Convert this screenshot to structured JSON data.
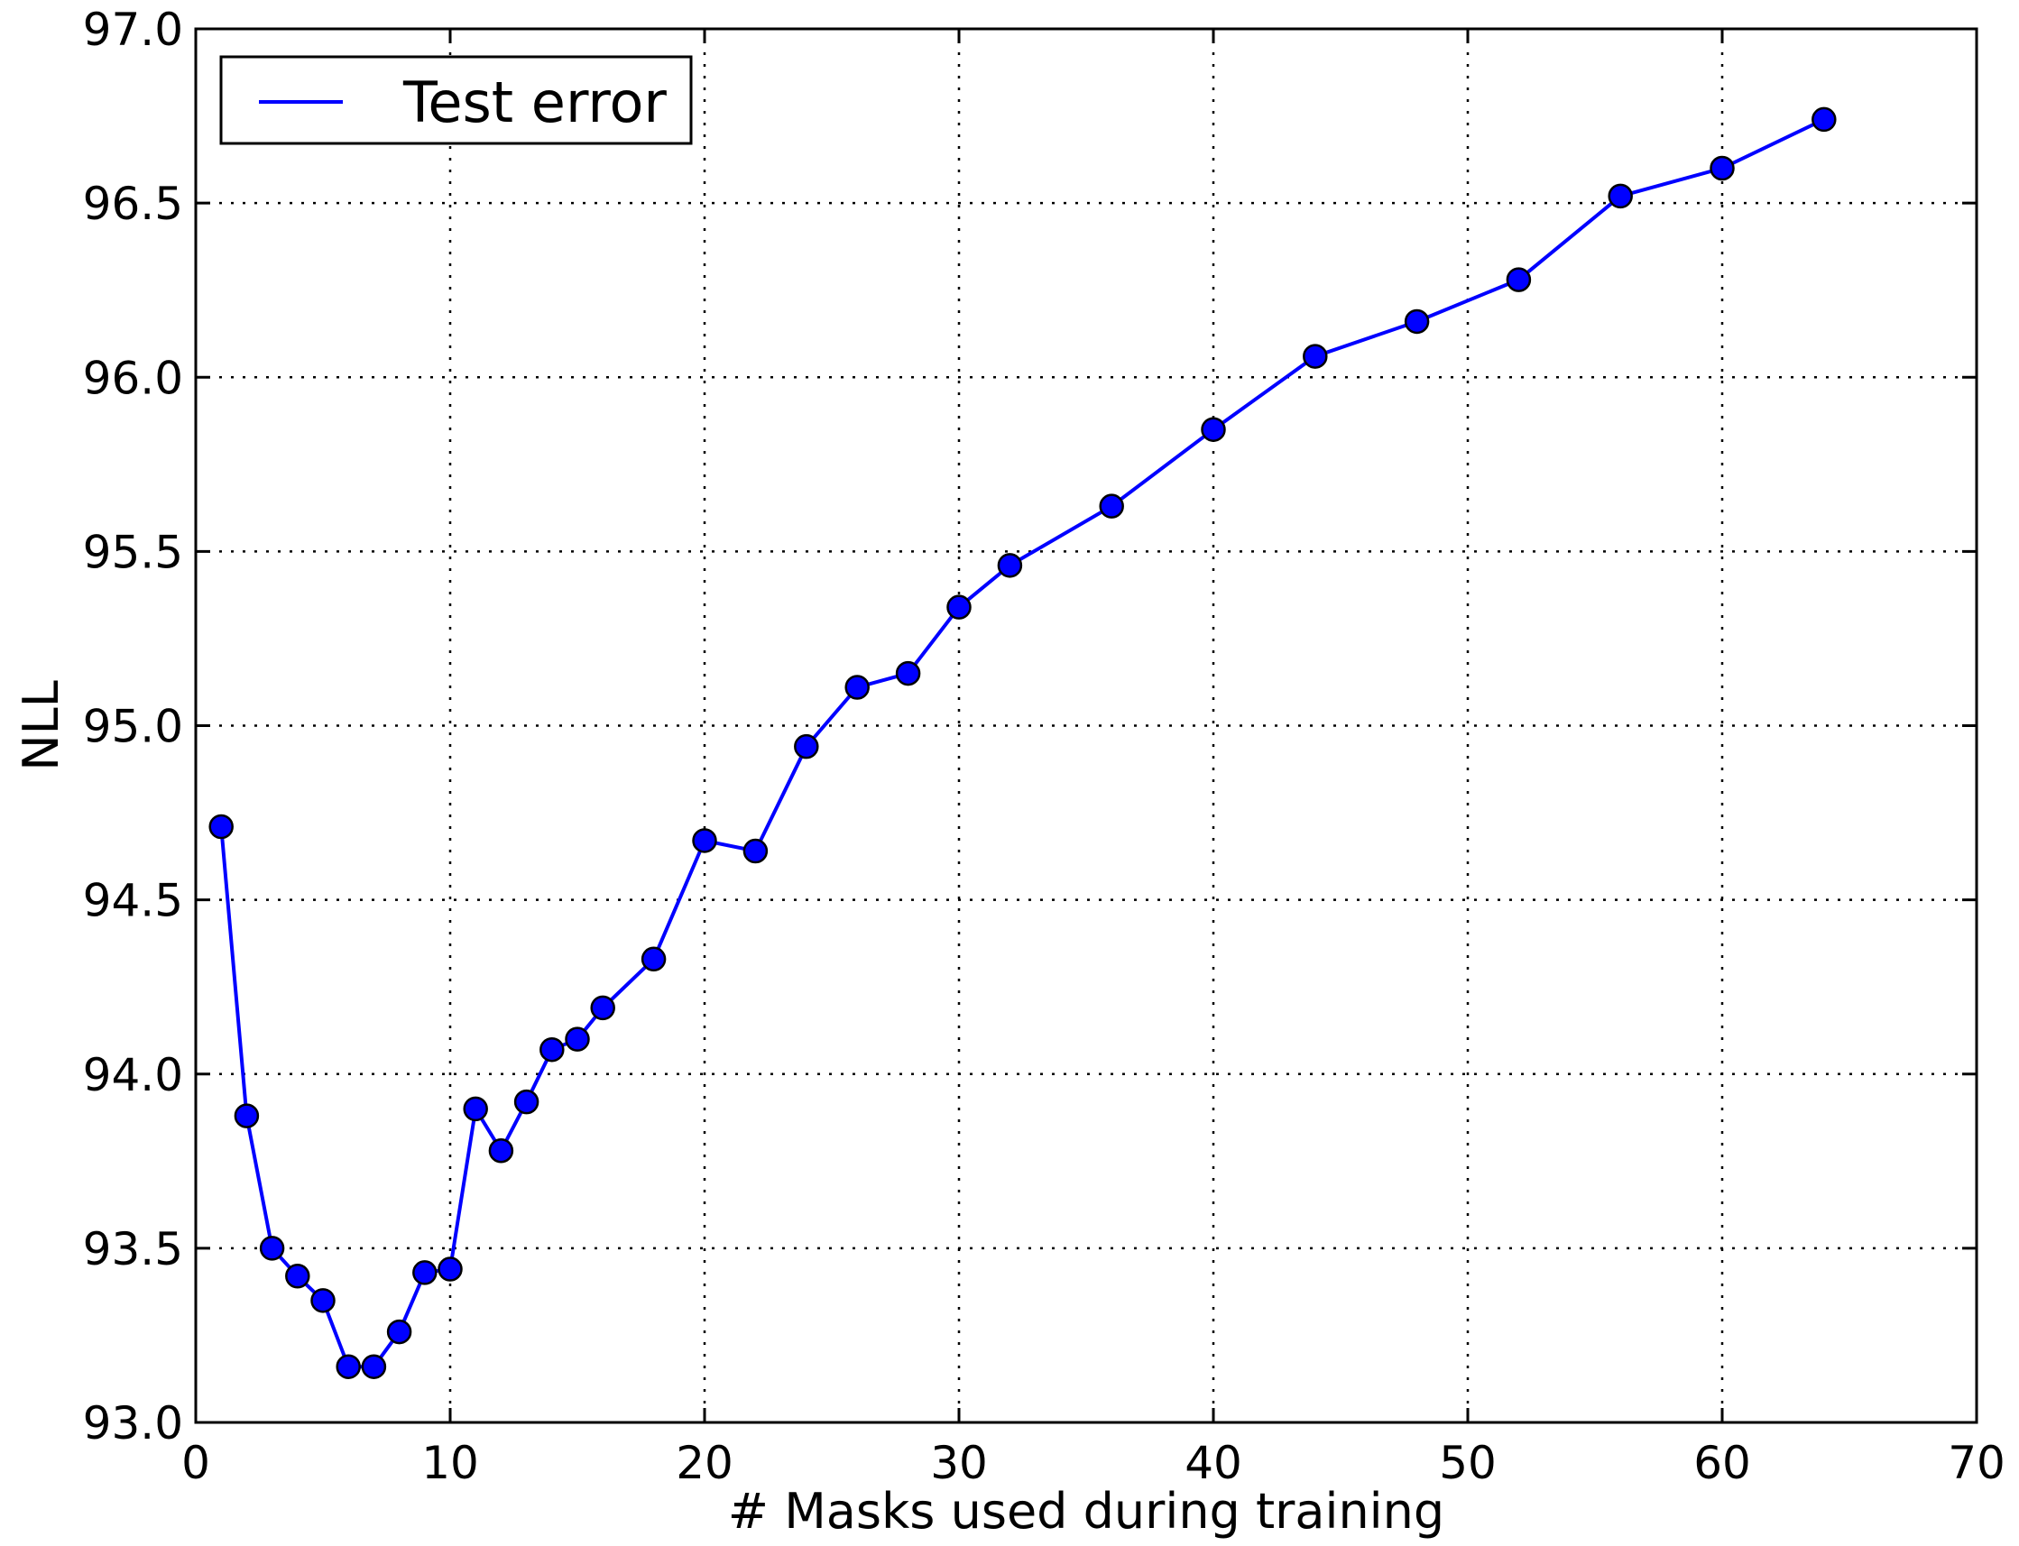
{
  "chart_data": {
    "type": "line",
    "title": "",
    "xlabel": "# Masks used during training",
    "ylabel": "NLL",
    "xlim": [
      0,
      70
    ],
    "ylim": [
      93.0,
      97.0
    ],
    "xticks": [
      0,
      10,
      20,
      30,
      40,
      50,
      60,
      70
    ],
    "yticks": [
      93.0,
      93.5,
      94.0,
      94.5,
      95.0,
      95.5,
      96.0,
      96.5,
      97.0
    ],
    "xtick_labels": [
      "0",
      "10",
      "20",
      "30",
      "40",
      "50",
      "60",
      "70"
    ],
    "ytick_labels": [
      "93.0",
      "93.5",
      "94.0",
      "94.5",
      "95.0",
      "95.5",
      "96.0",
      "96.5",
      "97.0"
    ],
    "grid": true,
    "legend_position": "top-left",
    "series": [
      {
        "name": "Test error",
        "color": "#0000ff",
        "marker": "circle",
        "x": [
          1,
          2,
          3,
          4,
          5,
          6,
          7,
          8,
          9,
          10,
          11,
          12,
          13,
          14,
          15,
          16,
          18,
          20,
          22,
          24,
          26,
          28,
          30,
          32,
          36,
          40,
          44,
          48,
          52,
          56,
          60,
          64
        ],
        "y": [
          94.71,
          93.88,
          93.5,
          93.42,
          93.35,
          93.16,
          93.16,
          93.26,
          93.43,
          93.44,
          93.9,
          93.78,
          93.92,
          94.07,
          94.1,
          94.19,
          94.33,
          94.67,
          94.64,
          94.94,
          95.11,
          95.15,
          95.34,
          95.46,
          95.63,
          95.85,
          96.06,
          96.16,
          96.28,
          96.52,
          96.6,
          96.74
        ]
      }
    ]
  }
}
